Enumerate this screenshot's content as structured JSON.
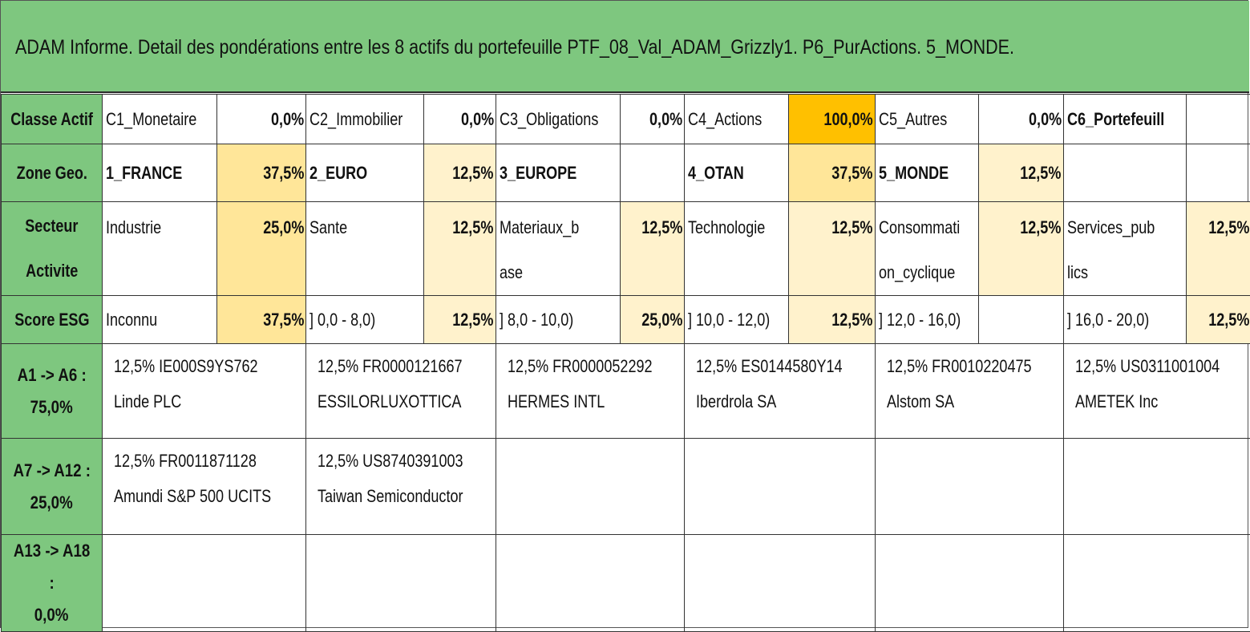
{
  "title": "ADAM Informe. Detail des pondérations entre les 8 actifs du portefeuille PTF_08_Val_ADAM_Grizzly1. P6_PurActions. 5_MONDE.",
  "rows": {
    "classe": {
      "header": "Classe Actif",
      "cells": [
        {
          "label": "C1_Monetaire",
          "value": "0,0%"
        },
        {
          "label": "C2_Immobilier",
          "value": "0,0%"
        },
        {
          "label": "C3_Obligations",
          "value": "0,0%"
        },
        {
          "label": "C4_Actions",
          "value": "100,0%"
        },
        {
          "label": "C5_Autres",
          "value": "0,0%"
        },
        {
          "label": "C6_Portefeuill",
          "value": ""
        }
      ]
    },
    "zone": {
      "header": "Zone Geo.",
      "cells": [
        {
          "label": "1_FRANCE",
          "value": "37,5%"
        },
        {
          "label": "2_EURO",
          "value": "12,5%"
        },
        {
          "label": "3_EUROPE",
          "value": ""
        },
        {
          "label": "4_OTAN",
          "value": "37,5%"
        },
        {
          "label": "5_MONDE",
          "value": "12,5%"
        },
        {
          "label": "",
          "value": ""
        }
      ]
    },
    "secteur": {
      "header_line1": "Secteur",
      "header_line2": "Activite",
      "cells": [
        {
          "label1": "Industrie",
          "label2": "",
          "value": "25,0%"
        },
        {
          "label1": "Sante",
          "label2": "",
          "value": "12,5%"
        },
        {
          "label1": "Materiaux_b",
          "label2": "ase",
          "value": "12,5%"
        },
        {
          "label1": "Technologie",
          "label2": "",
          "value": "12,5%"
        },
        {
          "label1": "Consommati",
          "label2": "on_cyclique",
          "value": "12,5%"
        },
        {
          "label1": "Services_pub",
          "label2": "lics",
          "value": "12,5%"
        }
      ]
    },
    "esg": {
      "header": "Score ESG",
      "cells": [
        {
          "label": "Inconnu",
          "value": "37,5%"
        },
        {
          "label": "] 0,0 - 8,0)",
          "value": "12,5%"
        },
        {
          "label": "] 8,0 - 10,0)",
          "value": "25,0%"
        },
        {
          "label": "] 10,0 - 12,0)",
          "value": "12,5%"
        },
        {
          "label": "] 12,0 - 16,0)",
          "value": ""
        },
        {
          "label": "] 16,0 - 20,0)",
          "value": "12,5%"
        }
      ]
    }
  },
  "asset_groups": [
    {
      "header_line1": "A1 -> A6 :",
      "header_line2": "75,0%",
      "assets": [
        {
          "line1": "12,5% IE000S9YS762",
          "line2": "Linde PLC"
        },
        {
          "line1": "12,5% FR0000121667",
          "line2": "ESSILORLUXOTTICA"
        },
        {
          "line1": "12,5% FR0000052292",
          "line2": "HERMES INTL"
        },
        {
          "line1": "12,5% ES0144580Y14",
          "line2": "Iberdrola SA"
        },
        {
          "line1": "12,5% FR0010220475",
          "line2": "Alstom SA"
        },
        {
          "line1": "12,5% US0311001004",
          "line2": "AMETEK Inc"
        }
      ]
    },
    {
      "header_line1": "A7 -> A12 :",
      "header_line2": "25,0%",
      "assets": [
        {
          "line1": "12,5% FR0011871128",
          "line2": "Amundi S&P 500 UCITS"
        },
        {
          "line1": "12,5% US8740391003",
          "line2": "Taiwan Semiconductor"
        },
        {
          "line1": "",
          "line2": ""
        },
        {
          "line1": "",
          "line2": ""
        },
        {
          "line1": "",
          "line2": ""
        },
        {
          "line1": "",
          "line2": ""
        }
      ]
    },
    {
      "header_line1": "A13 -> A18 :",
      "header_line2": "0,0%",
      "assets": [
        {
          "line1": "",
          "line2": ""
        },
        {
          "line1": "",
          "line2": ""
        },
        {
          "line1": "",
          "line2": ""
        },
        {
          "line1": "",
          "line2": ""
        },
        {
          "line1": "",
          "line2": ""
        },
        {
          "line1": "",
          "line2": ""
        }
      ]
    }
  ]
}
